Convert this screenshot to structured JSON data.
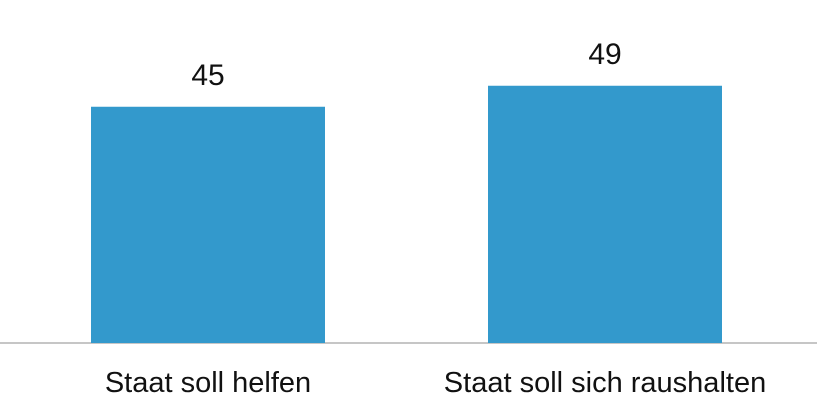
{
  "chart_data": {
    "type": "bar",
    "categories": [
      "Staat soll helfen",
      "Staat soll sich raushalten"
    ],
    "values": [
      45,
      49
    ],
    "data_labels": [
      "45",
      "49"
    ],
    "ylim": [
      0,
      60
    ],
    "grid": false,
    "legend": "none",
    "colors": {
      "bar": "#3399cc",
      "axis": "#b3b3b3",
      "text": "#111111"
    }
  }
}
